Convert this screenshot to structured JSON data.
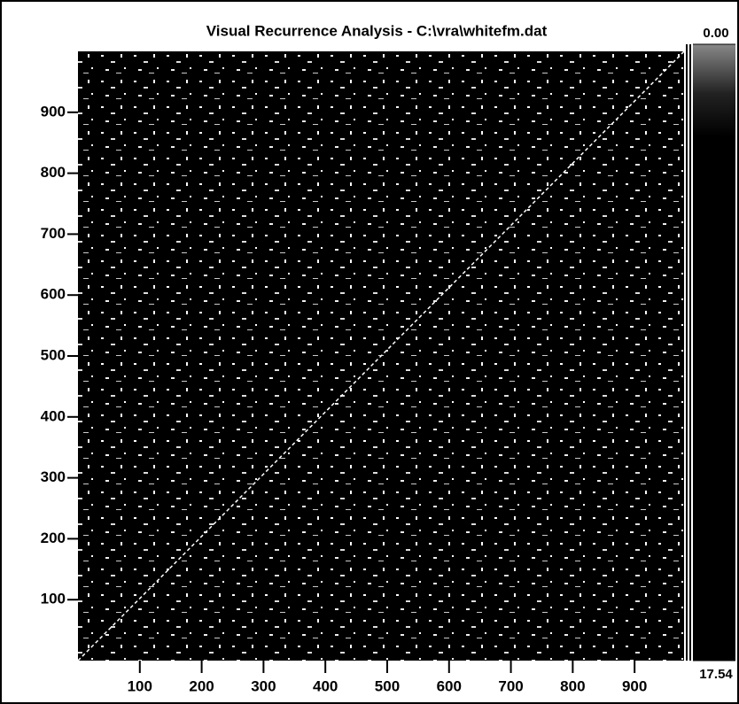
{
  "chart_data": {
    "type": "recurrence",
    "title": "Visual Recurrence Analysis  -  C:\\vra\\whitefm.dat",
    "xlim": [
      0,
      980
    ],
    "ylim": [
      0,
      1000
    ],
    "xticks": [
      100,
      200,
      300,
      400,
      500,
      600,
      700,
      800,
      900
    ],
    "yticks": [
      100,
      200,
      300,
      400,
      500,
      600,
      700,
      800,
      900
    ],
    "colorbar": {
      "ticks": [
        {
          "value": 0,
          "label": "0.00"
        },
        17.54
      ]
    }
  }
}
